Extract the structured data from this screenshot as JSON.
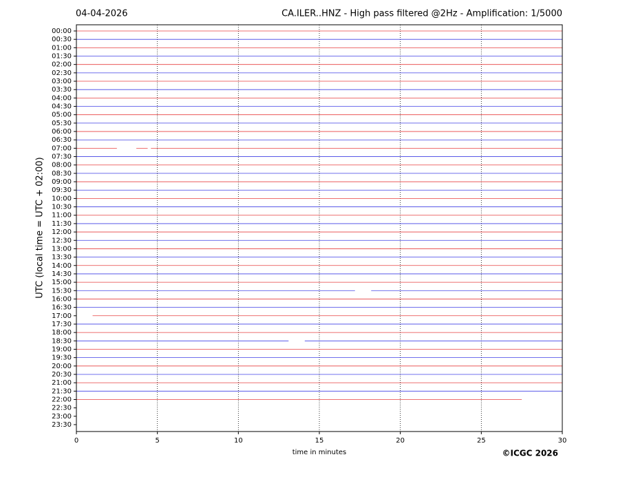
{
  "chart_data": {
    "type": "helicorder",
    "title_left": "04-04-2026",
    "title": "CA.ILER..HNZ - High pass filtered @2Hz - Amplification: 1/5000",
    "ylabel": "UTC (local time = UTC + 02:00)",
    "xlabel": "time in minutes",
    "credit": "©ICGC 2026",
    "xlim": [
      0,
      30
    ],
    "xticks": [
      0,
      5,
      10,
      15,
      20,
      25,
      30
    ],
    "grid": true,
    "colors": [
      "#e00000",
      "#0000dd"
    ],
    "rows": [
      {
        "label": "00:00",
        "segments": [
          [
            0,
            30
          ]
        ]
      },
      {
        "label": "00:30",
        "segments": [
          [
            0,
            30
          ]
        ]
      },
      {
        "label": "01:00",
        "segments": [
          [
            0,
            30
          ]
        ]
      },
      {
        "label": "01:30",
        "segments": [
          [
            0,
            30
          ]
        ]
      },
      {
        "label": "02:00",
        "segments": [
          [
            0,
            30
          ]
        ]
      },
      {
        "label": "02:30",
        "segments": [
          [
            0,
            30
          ]
        ]
      },
      {
        "label": "03:00",
        "segments": [
          [
            0,
            30
          ]
        ]
      },
      {
        "label": "03:30",
        "segments": [
          [
            0,
            30
          ]
        ]
      },
      {
        "label": "04:00",
        "segments": [
          [
            0,
            30
          ]
        ]
      },
      {
        "label": "04:30",
        "segments": [
          [
            0,
            30
          ]
        ]
      },
      {
        "label": "05:00",
        "segments": [
          [
            0,
            30
          ]
        ]
      },
      {
        "label": "05:30",
        "segments": [
          [
            0,
            30
          ]
        ]
      },
      {
        "label": "06:00",
        "segments": [
          [
            0,
            30
          ]
        ]
      },
      {
        "label": "06:30",
        "segments": [
          [
            0,
            30
          ]
        ]
      },
      {
        "label": "07:00",
        "segments": [
          [
            0,
            2.5
          ],
          [
            3.7,
            4.4
          ],
          [
            4.6,
            30
          ]
        ]
      },
      {
        "label": "07:30",
        "segments": [
          [
            0,
            30
          ]
        ]
      },
      {
        "label": "08:00",
        "segments": [
          [
            0,
            30
          ]
        ]
      },
      {
        "label": "08:30",
        "segments": [
          [
            0,
            30
          ]
        ]
      },
      {
        "label": "09:00",
        "segments": [
          [
            0,
            30
          ]
        ]
      },
      {
        "label": "09:30",
        "segments": [
          [
            0,
            30
          ]
        ]
      },
      {
        "label": "10:00",
        "segments": [
          [
            0,
            30
          ]
        ]
      },
      {
        "label": "10:30",
        "segments": [
          [
            0,
            30
          ]
        ]
      },
      {
        "label": "11:00",
        "segments": [
          [
            0,
            30
          ]
        ]
      },
      {
        "label": "11:30",
        "segments": [
          [
            0,
            30
          ]
        ]
      },
      {
        "label": "12:00",
        "segments": [
          [
            0,
            30
          ]
        ]
      },
      {
        "label": "12:30",
        "segments": [
          [
            0,
            30
          ]
        ]
      },
      {
        "label": "13:00",
        "segments": [
          [
            0,
            30
          ]
        ]
      },
      {
        "label": "13:30",
        "segments": [
          [
            0,
            30
          ]
        ]
      },
      {
        "label": "14:00",
        "segments": [
          [
            0,
            30
          ]
        ]
      },
      {
        "label": "14:30",
        "segments": [
          [
            0,
            30
          ]
        ]
      },
      {
        "label": "15:00",
        "segments": [
          [
            0,
            30
          ]
        ]
      },
      {
        "label": "15:30",
        "segments": [
          [
            0,
            17.2
          ],
          [
            18.2,
            30
          ]
        ]
      },
      {
        "label": "16:00",
        "segments": [
          [
            0,
            30
          ]
        ]
      },
      {
        "label": "16:30",
        "segments": [
          [
            0,
            30
          ]
        ]
      },
      {
        "label": "17:00",
        "segments": [
          [
            1,
            30
          ]
        ]
      },
      {
        "label": "17:30",
        "segments": [
          [
            0,
            30
          ]
        ]
      },
      {
        "label": "18:00",
        "segments": [
          [
            0,
            30
          ]
        ]
      },
      {
        "label": "18:30",
        "segments": [
          [
            0,
            13.1
          ],
          [
            14.1,
            30
          ]
        ]
      },
      {
        "label": "19:00",
        "segments": [
          [
            0,
            30
          ]
        ]
      },
      {
        "label": "19:30",
        "segments": [
          [
            0,
            30
          ]
        ]
      },
      {
        "label": "20:00",
        "segments": [
          [
            0,
            30
          ]
        ]
      },
      {
        "label": "20:30",
        "segments": [
          [
            0,
            30
          ]
        ]
      },
      {
        "label": "21:00",
        "segments": [
          [
            0,
            30
          ]
        ]
      },
      {
        "label": "21:30",
        "segments": [
          [
            0,
            30
          ]
        ]
      },
      {
        "label": "22:00",
        "segments": [
          [
            0,
            27.5
          ]
        ]
      },
      {
        "label": "22:30",
        "segments": null
      },
      {
        "label": "23:00",
        "segments": null
      },
      {
        "label": "23:30",
        "segments": null
      }
    ]
  }
}
